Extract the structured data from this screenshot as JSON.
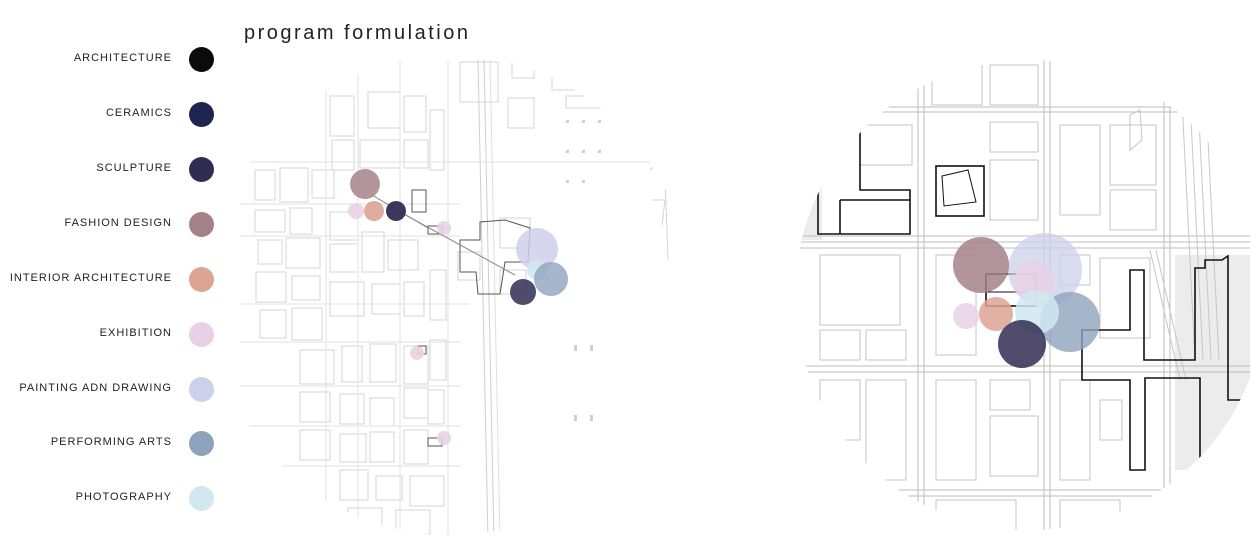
{
  "title": "program formulation",
  "legend": [
    {
      "label": "ARCHITECTURE",
      "color": "#0b0b0d"
    },
    {
      "label": "CERAMICS",
      "color": "#1f2550"
    },
    {
      "label": "SCULPTURE",
      "color": "#302d55"
    },
    {
      "label": "FASHION DESIGN",
      "color": "#a5828a"
    },
    {
      "label": "INTERIOR ARCHITECTURE",
      "color": "#dda393"
    },
    {
      "label": "EXHIBITION",
      "color": "#e8d1e6"
    },
    {
      "label": "PAINTING ADN DRAWING",
      "color": "#ccd0ea"
    },
    {
      "label": "PERFORMING ARTS",
      "color": "#8ea2bd"
    },
    {
      "label": "PHOTOGRAPHY",
      "color": "#d0e8f0"
    }
  ]
}
